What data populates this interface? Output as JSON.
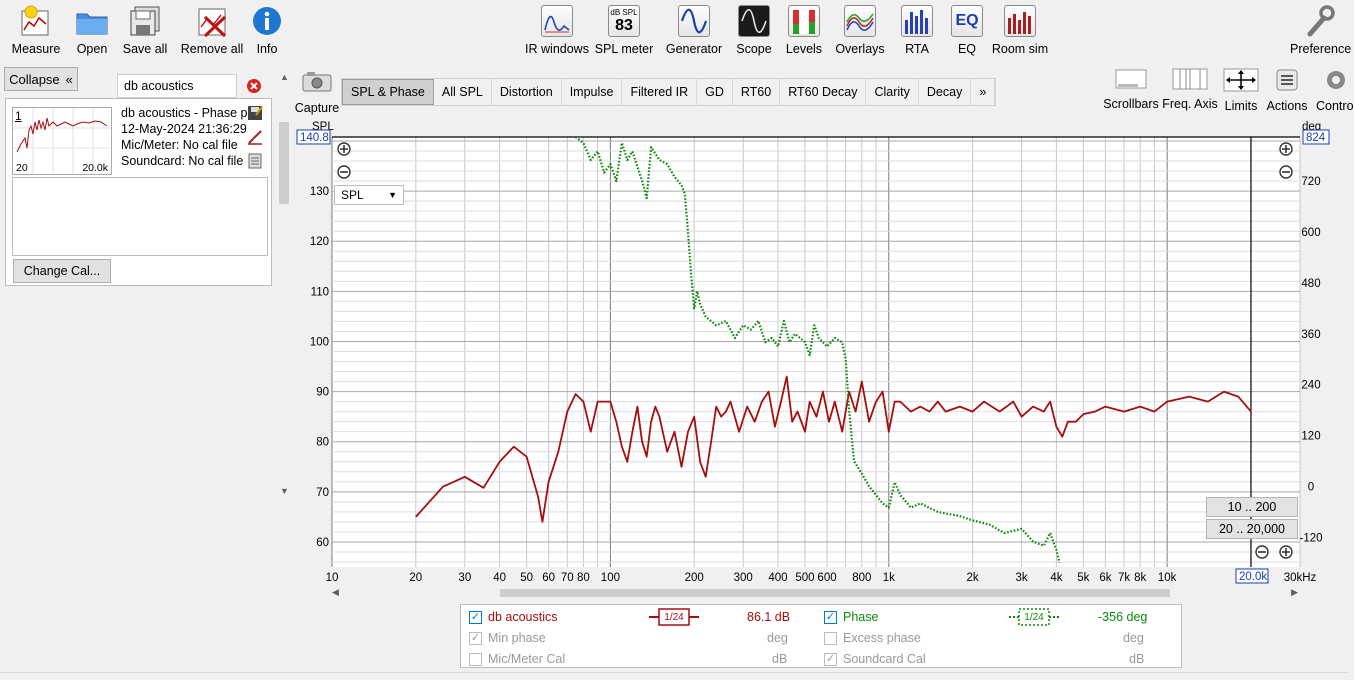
{
  "toolbar": {
    "left": [
      {
        "label": "Measure",
        "icon": "measure-icon"
      },
      {
        "label": "Open",
        "icon": "folder-icon"
      },
      {
        "label": "Save all",
        "icon": "save-all-icon"
      },
      {
        "label": "Remove all",
        "icon": "remove-all-icon"
      },
      {
        "label": "Info",
        "icon": "info-icon"
      }
    ],
    "center": [
      {
        "label": "IR windows",
        "icon": "ir-windows-icon"
      },
      {
        "label": "SPL meter",
        "icon": "spl-meter-icon",
        "top": "dB SPL",
        "value": "83"
      },
      {
        "label": "Generator",
        "icon": "generator-icon"
      },
      {
        "label": "Scope",
        "icon": "scope-icon"
      },
      {
        "label": "Levels",
        "icon": "levels-icon"
      },
      {
        "label": "Overlays",
        "icon": "overlays-icon"
      },
      {
        "label": "RTA",
        "icon": "rta-icon"
      },
      {
        "label": "EQ",
        "icon": "eq-icon"
      },
      {
        "label": "Room sim",
        "icon": "room-sim-icon"
      }
    ],
    "preferences": "Preference"
  },
  "left_panel": {
    "collapse": "Collapse",
    "search_value": "db acoustics",
    "measurement": {
      "index": "1",
      "name": "db acoustics - Phase p",
      "date": "12-May-2024 21:36:29",
      "mic": "Mic/Meter: No cal file",
      "soundcard": "Soundcard: No cal file",
      "thumb_left": "20",
      "thumb_right": "20.0k"
    },
    "change_cal": "Change Cal..."
  },
  "capture": "Capture",
  "tabs": [
    "SPL & Phase",
    "All SPL",
    "Distortion",
    "Impulse",
    "Filtered IR",
    "GD",
    "RT60",
    "RT60 Decay",
    "Clarity",
    "Decay",
    "»"
  ],
  "active_tab": "SPL & Phase",
  "view_buttons": [
    {
      "label": "Scrollbars",
      "icon": "scrollbars-icon"
    },
    {
      "label": "Freq. Axis",
      "icon": "freq-axis-icon"
    },
    {
      "label": "Limits",
      "icon": "limits-icon"
    },
    {
      "label": "Actions",
      "icon": "actions-icon"
    },
    {
      "label": "Contro",
      "icon": "controls-icon"
    }
  ],
  "chart": {
    "left_axis_unit": "SPL",
    "right_axis_unit": "deg",
    "left_top_value": "140.8",
    "right_top_value": "824",
    "x_end_value": "20.0k",
    "dropdown": "SPL",
    "range_buttons": [
      "10 .. 200",
      "20 .. 20,000"
    ]
  },
  "chart_data": {
    "type": "line",
    "xscale": "log",
    "xlim": [
      10,
      30000
    ],
    "ylim_left": [
      55,
      140.8
    ],
    "ylim_right": [
      -190,
      824
    ],
    "y_ticks_left": [
      130,
      120,
      110,
      100,
      90,
      80,
      70,
      60
    ],
    "y_ticks_right": [
      720,
      600,
      480,
      360,
      240,
      120,
      0,
      -120
    ],
    "x_ticks": [
      {
        "v": 10,
        "l": "10"
      },
      {
        "v": 20,
        "l": "20"
      },
      {
        "v": 30,
        "l": "30"
      },
      {
        "v": 40,
        "l": "40"
      },
      {
        "v": 50,
        "l": "50"
      },
      {
        "v": 60,
        "l": "60"
      },
      {
        "v": 70,
        "l": "70"
      },
      {
        "v": 80,
        "l": "80"
      },
      {
        "v": 100,
        "l": "100"
      },
      {
        "v": 200,
        "l": "200"
      },
      {
        "v": 300,
        "l": "300"
      },
      {
        "v": 400,
        "l": "400"
      },
      {
        "v": 500,
        "l": "500"
      },
      {
        "v": 600,
        "l": "600"
      },
      {
        "v": 800,
        "l": "800"
      },
      {
        "v": 1000,
        "l": "1k"
      },
      {
        "v": 2000,
        "l": "2k"
      },
      {
        "v": 3000,
        "l": "3k"
      },
      {
        "v": 4000,
        "l": "4k"
      },
      {
        "v": 5000,
        "l": "5k"
      },
      {
        "v": 6000,
        "l": "6k"
      },
      {
        "v": 7000,
        "l": "7k"
      },
      {
        "v": 8000,
        "l": "8k"
      },
      {
        "v": 10000,
        "l": "10k"
      },
      {
        "v": 30000,
        "l": "30kHz"
      }
    ],
    "series": [
      {
        "name": "db acoustics",
        "axis": "left",
        "color": "#a50f0f",
        "style": "solid",
        "points": [
          [
            20,
            65
          ],
          [
            25,
            71
          ],
          [
            30,
            73
          ],
          [
            35,
            70.8
          ],
          [
            40,
            76
          ],
          [
            45,
            79
          ],
          [
            50,
            77
          ],
          [
            55,
            69
          ],
          [
            57,
            64
          ],
          [
            60,
            72
          ],
          [
            65,
            78
          ],
          [
            70,
            86
          ],
          [
            75,
            89.5
          ],
          [
            80,
            88
          ],
          [
            85,
            82
          ],
          [
            90,
            88
          ],
          [
            95,
            88
          ],
          [
            100,
            88
          ],
          [
            105,
            84
          ],
          [
            110,
            79
          ],
          [
            115,
            76
          ],
          [
            120,
            82
          ],
          [
            125,
            87
          ],
          [
            130,
            80
          ],
          [
            135,
            77
          ],
          [
            140,
            84
          ],
          [
            145,
            87
          ],
          [
            150,
            85
          ],
          [
            160,
            78
          ],
          [
            170,
            82
          ],
          [
            180,
            75
          ],
          [
            190,
            82
          ],
          [
            200,
            85
          ],
          [
            210,
            76
          ],
          [
            220,
            73
          ],
          [
            230,
            80
          ],
          [
            240,
            87
          ],
          [
            250,
            85
          ],
          [
            260,
            86
          ],
          [
            270,
            88
          ],
          [
            290,
            82
          ],
          [
            310,
            87
          ],
          [
            330,
            84
          ],
          [
            350,
            88
          ],
          [
            370,
            90
          ],
          [
            390,
            83
          ],
          [
            410,
            88
          ],
          [
            430,
            93
          ],
          [
            450,
            84
          ],
          [
            470,
            86
          ],
          [
            500,
            82
          ],
          [
            520,
            88
          ],
          [
            550,
            85
          ],
          [
            580,
            90
          ],
          [
            610,
            84
          ],
          [
            640,
            88
          ],
          [
            680,
            82
          ],
          [
            720,
            90
          ],
          [
            760,
            86
          ],
          [
            800,
            92
          ],
          [
            850,
            84
          ],
          [
            900,
            88
          ],
          [
            950,
            90
          ],
          [
            1000,
            82
          ],
          [
            1050,
            88
          ],
          [
            1100,
            88
          ],
          [
            1200,
            86
          ],
          [
            1300,
            87
          ],
          [
            1400,
            86
          ],
          [
            1500,
            88
          ],
          [
            1600,
            86
          ],
          [
            1800,
            87
          ],
          [
            2000,
            86
          ],
          [
            2200,
            88
          ],
          [
            2500,
            86
          ],
          [
            2800,
            88
          ],
          [
            3000,
            85
          ],
          [
            3300,
            87
          ],
          [
            3600,
            86
          ],
          [
            3800,
            88
          ],
          [
            4000,
            83
          ],
          [
            4200,
            81
          ],
          [
            4400,
            84
          ],
          [
            4700,
            84
          ],
          [
            5000,
            85.5
          ],
          [
            5500,
            86
          ],
          [
            6000,
            87
          ],
          [
            7000,
            86
          ],
          [
            8000,
            87
          ],
          [
            9000,
            86
          ],
          [
            10000,
            88
          ],
          [
            12000,
            89
          ],
          [
            14000,
            88
          ],
          [
            16000,
            90
          ],
          [
            18000,
            89
          ],
          [
            20000,
            86
          ]
        ]
      },
      {
        "name": "Phase",
        "axis": "right",
        "color": "#0a8a0a",
        "style": "dotted",
        "points": [
          [
            75,
            824
          ],
          [
            80,
            810
          ],
          [
            85,
            770
          ],
          [
            90,
            790
          ],
          [
            95,
            740
          ],
          [
            100,
            760
          ],
          [
            105,
            720
          ],
          [
            110,
            810
          ],
          [
            115,
            770
          ],
          [
            120,
            790
          ],
          [
            130,
            720
          ],
          [
            135,
            680
          ],
          [
            140,
            800
          ],
          [
            150,
            770
          ],
          [
            160,
            760
          ],
          [
            170,
            730
          ],
          [
            180,
            710
          ],
          [
            185,
            690
          ],
          [
            190,
            600
          ],
          [
            195,
            500
          ],
          [
            200,
            420
          ],
          [
            205,
            460
          ],
          [
            210,
            430
          ],
          [
            220,
            400
          ],
          [
            240,
            380
          ],
          [
            260,
            390
          ],
          [
            280,
            350
          ],
          [
            300,
            380
          ],
          [
            320,
            370
          ],
          [
            340,
            390
          ],
          [
            360,
            340
          ],
          [
            380,
            350
          ],
          [
            400,
            330
          ],
          [
            420,
            390
          ],
          [
            440,
            340
          ],
          [
            460,
            360
          ],
          [
            480,
            350
          ],
          [
            500,
            340
          ],
          [
            520,
            310
          ],
          [
            540,
            380
          ],
          [
            560,
            350
          ],
          [
            600,
            330
          ],
          [
            640,
            350
          ],
          [
            680,
            340
          ],
          [
            700,
            300
          ],
          [
            720,
            180
          ],
          [
            750,
            60
          ],
          [
            800,
            30
          ],
          [
            850,
            0
          ],
          [
            900,
            -20
          ],
          [
            950,
            -40
          ],
          [
            1000,
            -50
          ],
          [
            1050,
            10
          ],
          [
            1100,
            -20
          ],
          [
            1200,
            -50
          ],
          [
            1300,
            -40
          ],
          [
            1500,
            -60
          ],
          [
            1800,
            -70
          ],
          [
            2000,
            -80
          ],
          [
            2300,
            -90
          ],
          [
            2600,
            -110
          ],
          [
            3000,
            -100
          ],
          [
            3300,
            -130
          ],
          [
            3600,
            -140
          ],
          [
            3800,
            -110
          ],
          [
            4000,
            -150
          ],
          [
            4100,
            -180
          ]
        ]
      }
    ]
  },
  "legend": {
    "row1": {
      "name": "db acoustics",
      "smoothing": "1/24",
      "value": "86.1 dB",
      "phase_name": "Phase",
      "phase_smoothing": "1/24",
      "phase_value": "-356 deg"
    },
    "row2": {
      "name": "Min phase",
      "unit": "deg",
      "name2": "Excess phase",
      "unit2": "deg"
    },
    "row3": {
      "name": "Mic/Meter Cal",
      "unit": "dB",
      "name2": "Soundcard Cal",
      "unit2": "dB"
    }
  }
}
